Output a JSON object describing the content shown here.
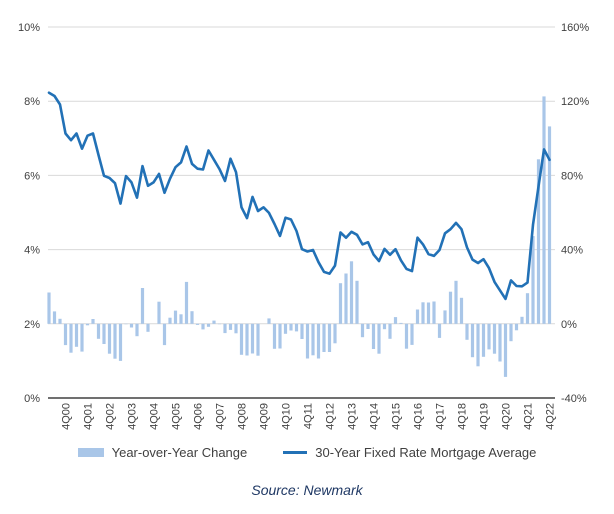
{
  "chart_data": {
    "type": "combo",
    "title": "",
    "grid": true,
    "legend_position": "bottom",
    "source": "Source: Newmark",
    "categories": [
      "1Q00",
      "2Q00",
      "3Q00",
      "4Q00",
      "1Q01",
      "2Q01",
      "3Q01",
      "4Q01",
      "1Q02",
      "2Q02",
      "3Q02",
      "4Q02",
      "1Q03",
      "2Q03",
      "3Q03",
      "4Q03",
      "1Q04",
      "2Q04",
      "3Q04",
      "4Q04",
      "1Q05",
      "2Q05",
      "3Q05",
      "4Q05",
      "1Q06",
      "2Q06",
      "3Q06",
      "4Q06",
      "1Q07",
      "2Q07",
      "3Q07",
      "4Q07",
      "1Q08",
      "2Q08",
      "3Q08",
      "4Q08",
      "1Q09",
      "2Q09",
      "3Q09",
      "4Q09",
      "1Q10",
      "2Q10",
      "3Q10",
      "4Q10",
      "1Q11",
      "2Q11",
      "3Q11",
      "4Q11",
      "1Q12",
      "2Q12",
      "3Q12",
      "4Q12",
      "1Q13",
      "2Q13",
      "3Q13",
      "4Q13",
      "1Q14",
      "2Q14",
      "3Q14",
      "4Q14",
      "1Q15",
      "2Q15",
      "3Q15",
      "4Q15",
      "1Q16",
      "2Q16",
      "3Q16",
      "4Q16",
      "1Q17",
      "2Q17",
      "3Q17",
      "4Q17",
      "1Q18",
      "2Q18",
      "3Q18",
      "4Q18",
      "1Q19",
      "2Q19",
      "3Q19",
      "4Q19",
      "1Q20",
      "2Q20",
      "3Q20",
      "4Q20",
      "1Q21",
      "2Q21",
      "3Q21",
      "4Q21",
      "1Q22",
      "2Q22",
      "3Q22",
      "4Q22"
    ],
    "x_axis_visible_ticks": [
      "4Q00",
      "4Q01",
      "4Q02",
      "4Q03",
      "4Q04",
      "4Q05",
      "4Q06",
      "4Q07",
      "4Q08",
      "4Q09",
      "4Q10",
      "4Q11",
      "4Q12",
      "4Q13",
      "4Q14",
      "4Q15",
      "4Q16",
      "4Q17",
      "4Q18",
      "4Q19",
      "4Q20",
      "4Q21",
      "4Q22"
    ],
    "series": [
      {
        "name": "Year-over-Year Change",
        "type": "bar",
        "axis": "right",
        "unit": "%",
        "color": "#A9C6E8",
        "values": [
          16.9,
          6.7,
          2.7,
          -11.5,
          -15.6,
          -12.4,
          -15.0,
          -0.8,
          2.6,
          -8.1,
          -10.9,
          -16.1,
          -18.8,
          -20.0,
          -0.2,
          -2.0,
          -6.7,
          19.3,
          -4.3,
          0.0,
          11.9,
          -11.5,
          3.3,
          7.1,
          5.1,
          22.6,
          6.8,
          -0.6,
          -3.0,
          -1.6,
          1.7,
          -0.2,
          -5.0,
          -3.3,
          -5.1,
          -16.7,
          -17.1,
          -16.0,
          -17.2,
          0.0,
          2.9,
          -13.5,
          -13.3,
          -5.4,
          -3.6,
          -4.1,
          -8.2,
          -18.7,
          -17.0,
          -18.7,
          -15.2,
          -15.2,
          -10.5,
          21.9,
          27.1,
          33.7,
          23.2,
          -7.2,
          -2.8,
          -13.6,
          -16.1,
          -2.9,
          -8.1,
          3.6,
          0.5,
          -13.4,
          -11.4,
          7.7,
          11.6,
          11.5,
          12.0,
          -7.6,
          7.2,
          17.3,
          23.2,
          14.0,
          -8.6,
          -18.0,
          -22.9,
          -17.8,
          -13.8,
          -16.1,
          -20.3,
          -28.6,
          -9.4,
          -3.5,
          3.8,
          16.5,
          47.3,
          88.7,
          122.6,
          106.4
        ]
      },
      {
        "name": "30-Year Fixed Rate Mortgage Average",
        "type": "line",
        "axis": "left",
        "unit": "%",
        "color": "#2271B6",
        "values": [
          8.23,
          8.14,
          7.91,
          7.13,
          6.95,
          7.13,
          6.72,
          7.07,
          7.13,
          6.55,
          5.99,
          5.93,
          5.79,
          5.24,
          5.98,
          5.81,
          5.4,
          6.25,
          5.72,
          5.81,
          6.04,
          5.53,
          5.91,
          6.22,
          6.35,
          6.78,
          6.31,
          6.18,
          6.16,
          6.67,
          6.42,
          6.17,
          5.85,
          6.45,
          6.09,
          5.14,
          4.85,
          5.42,
          5.04,
          5.14,
          4.99,
          4.69,
          4.37,
          4.86,
          4.81,
          4.5,
          4.01,
          3.95,
          3.99,
          3.66,
          3.4,
          3.35,
          3.57,
          4.46,
          4.32,
          4.48,
          4.4,
          4.14,
          4.2,
          3.87,
          3.69,
          4.02,
          3.86,
          4.01,
          3.71,
          3.48,
          3.42,
          4.32,
          4.14,
          3.88,
          3.83,
          3.99,
          4.44,
          4.55,
          4.72,
          4.55,
          4.06,
          3.73,
          3.64,
          3.74,
          3.5,
          3.13,
          2.9,
          2.67,
          3.17,
          3.02,
          3.01,
          3.11,
          4.67,
          5.7,
          6.7,
          6.42
        ]
      }
    ],
    "left_axis": {
      "tick_labels": [
        "0%",
        "2%",
        "4%",
        "6%",
        "8%",
        "10%"
      ],
      "min": 0,
      "max": 10
    },
    "right_axis": {
      "tick_labels": [
        "-40%",
        "0%",
        "40%",
        "80%",
        "120%",
        "160%"
      ],
      "min": -40,
      "max": 160
    },
    "colors": {
      "grid": "#D9D9D9",
      "axis_line": "#404040",
      "tick_label": "#404040",
      "legend_text": "#404040",
      "source_text": "#1F3864",
      "background": "#FFFFFF"
    }
  }
}
